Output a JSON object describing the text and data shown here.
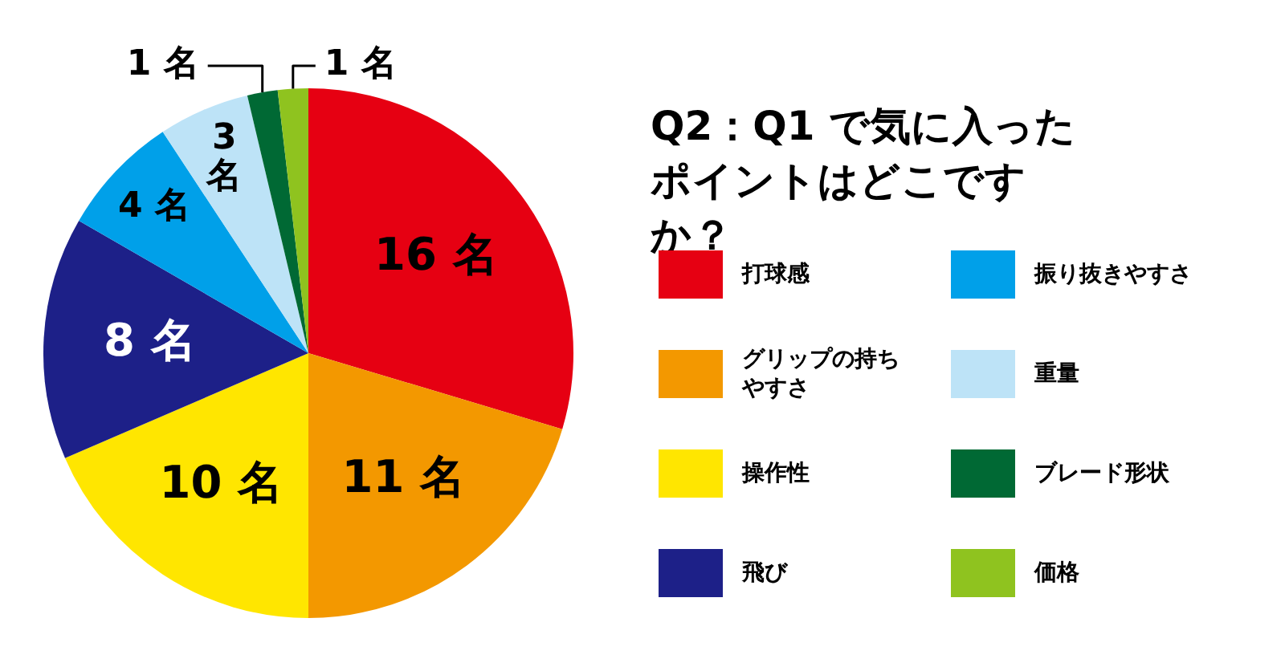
{
  "chart_data": {
    "type": "pie",
    "title": "Q2：Q1 で気に入ったポイントはどこですか？",
    "categories": [
      "打球感",
      "グリップの持ちやすさ",
      "操作性",
      "飛び",
      "振り抜きやすさ",
      "重量",
      "ブレード形状",
      "価格"
    ],
    "values": [
      16,
      11,
      10,
      8,
      4,
      3,
      1,
      1
    ],
    "colors": [
      "#e60012",
      "#f39800",
      "#ffe600",
      "#1d2088",
      "#00a0e9",
      "#bde3f7",
      "#006934",
      "#8fc31f"
    ],
    "value_labels": [
      "16 名",
      "11 名",
      "10 名",
      "8 名",
      "4 名",
      "3 名",
      "1 名",
      "1 名"
    ],
    "legend": "right"
  }
}
